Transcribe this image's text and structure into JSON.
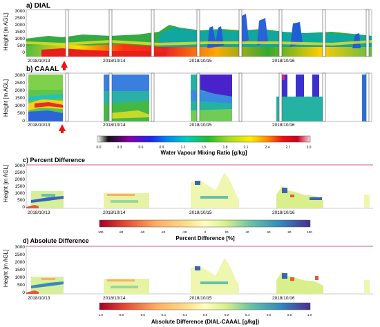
{
  "chart_data": [
    {
      "type": "heatmap",
      "title": "a) DIAL",
      "ylabel": "Height [m AGL]",
      "yticks": [
        0,
        500,
        1000,
        1500,
        2000,
        2500,
        3000
      ],
      "ylim": [
        0,
        3250
      ],
      "xtick_labels": [
        "2018/10/13",
        "2018/10/14",
        "2018/10/15",
        "2018/10/16"
      ],
      "variable": "Water Vapour Mixing Ratio [g/kg]"
    },
    {
      "type": "heatmap",
      "title": "b) CAAAL",
      "ylabel": "Height [m AGL]",
      "yticks": [
        0,
        500,
        1000,
        1500,
        2000,
        2500,
        3000
      ],
      "ylim": [
        0,
        3250
      ],
      "xtick_labels": [
        "2018/10/13",
        "2018/10/14",
        "2018/10/15",
        "2018/10/16"
      ],
      "variable": "Water Vapour Mixing Ratio [g/kg]"
    },
    {
      "type": "heatmap",
      "title": "c) Percent Difference",
      "ylabel": "Height [m AGL]",
      "yticks": [
        0,
        500,
        1000,
        1500,
        2000,
        2500,
        3000
      ],
      "ylim": [
        0,
        3250
      ],
      "xtick_labels": [
        "2018/10/13",
        "2018/10/14",
        "2018/10/15",
        "2018/10/16"
      ],
      "variable": "Percent Difference [%]"
    },
    {
      "type": "heatmap",
      "title": "d) Absolute Difference",
      "ylabel": "Height [m AGL]",
      "yticks": [
        0,
        500,
        1000,
        1500,
        2000,
        2500,
        3000
      ],
      "ylim": [
        0,
        3250
      ],
      "xtick_labels": [
        "2018/10/13",
        "2018/10/14",
        "2018/10/15",
        "2018/10/16"
      ],
      "variable": "Absolute Difference (DIAL-CAAAL [g/kg])"
    }
  ],
  "colorbars": {
    "wv": {
      "label": "Water Vapour Mixing Ratio [g/kg]",
      "ticks": [
        "0.0",
        "0.3",
        "0.6",
        "0.9",
        "1.2",
        "1.5",
        "1.8",
        "2.1",
        "2.4",
        "2.7",
        "3.0"
      ],
      "range": [
        0,
        3.0
      ]
    },
    "pct": {
      "label": "Percent Difference [%]",
      "ticks": [
        "-100",
        "-80",
        "-60",
        "-40",
        "-20",
        "0",
        "20",
        "40",
        "60",
        "80",
        "100"
      ],
      "range": [
        -100,
        100
      ]
    },
    "abs": {
      "label": "Absolute Difference (DIAL-CAAAL [g/kg])",
      "ticks": [
        "-1.0",
        "-0.8",
        "-0.6",
        "-0.4",
        "-0.2",
        "0.0",
        "0.2",
        "0.4",
        "0.6",
        "0.8",
        "1.0"
      ],
      "range": [
        -1.0,
        1.0
      ]
    }
  },
  "colors": {
    "arrow": "#ee1111",
    "top_line": "#cc2255"
  }
}
